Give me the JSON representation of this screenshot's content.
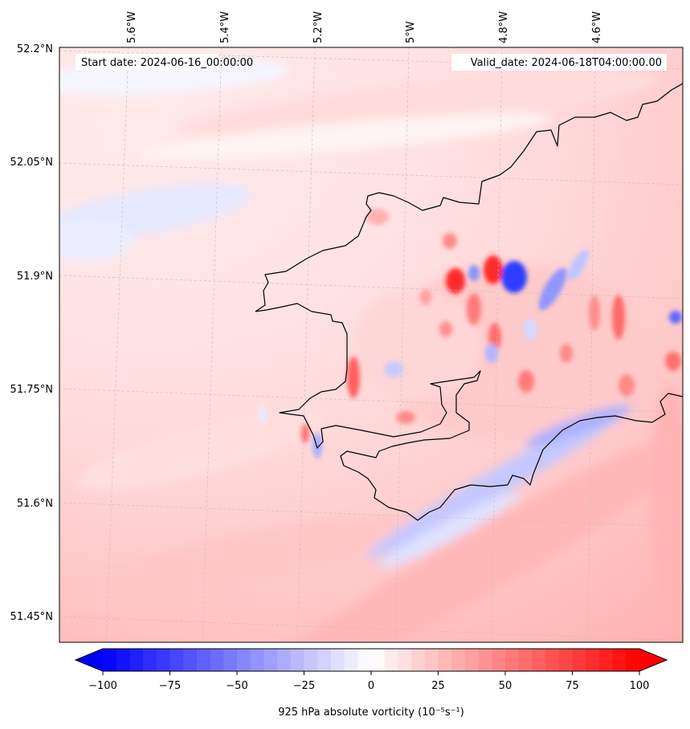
{
  "map": {
    "start_label": "Start date: 2024-06-16_00:00:00",
    "valid_label": "Valid_date: 2024-06-18T04:00:00.00",
    "lon_labels": [
      "5.6°W",
      "5.4°W",
      "5.2°W",
      "5°W",
      "4.8°W",
      "4.6°W"
    ],
    "lat_labels": [
      "52.2°N",
      "52.05°N",
      "51.9°N",
      "51.75°N",
      "51.6°N",
      "51.45°N"
    ]
  },
  "colorbar": {
    "ticks": [
      "−100",
      "−75",
      "−50",
      "−25",
      "0",
      "25",
      "50",
      "75",
      "100"
    ],
    "label": "925 hPa absolute vorticity (10⁻⁵s⁻¹)",
    "vmin": -100,
    "vmax": 100,
    "levels": 40,
    "cmap": "bwr",
    "extend": "both"
  },
  "features": [
    {
      "name": "coastline",
      "type": "line",
      "color": "#000000"
    },
    {
      "name": "gridlines",
      "type": "line",
      "style": "dashed",
      "color": "#bbbbbb"
    }
  ],
  "colors": {
    "positive": "#ff0000",
    "negative": "#0000ff",
    "zero": "#ffffff"
  }
}
